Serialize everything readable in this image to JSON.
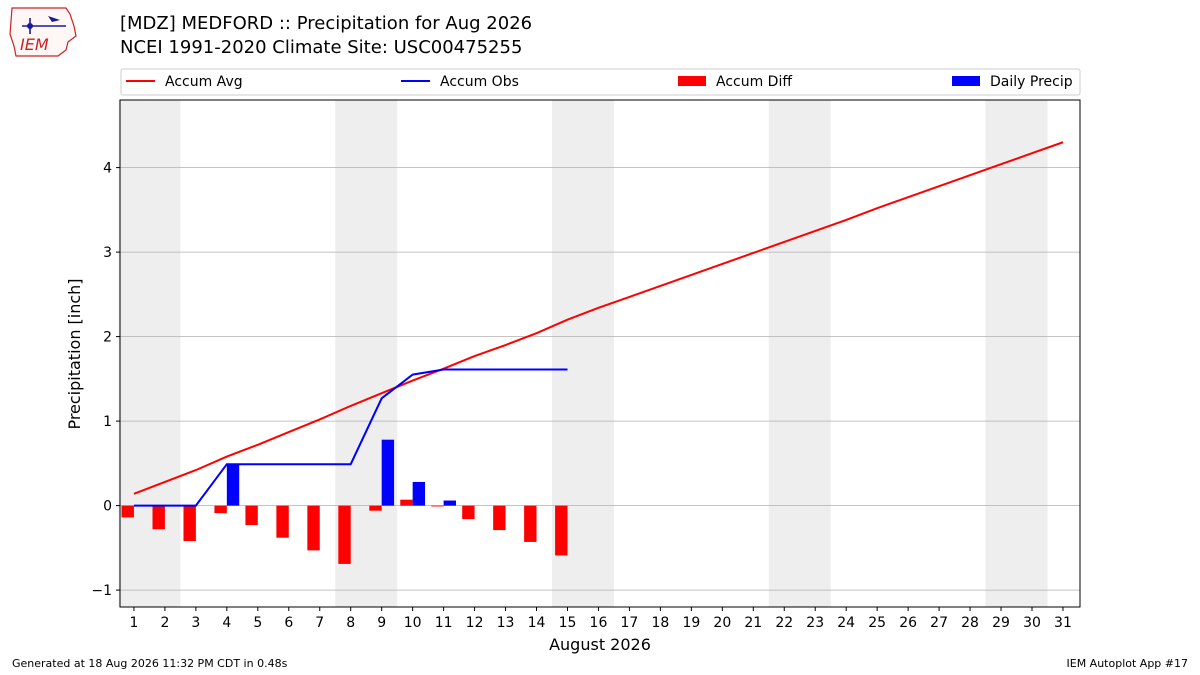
{
  "header": {
    "title_line1": "[MDZ] MEDFORD :: Precipitation for Aug 2026",
    "title_line2": "NCEI 1991-2020 Climate Site: USC00475255",
    "logo_text": "IEM"
  },
  "footer": {
    "generated": "Generated at 18 Aug 2026 11:32 PM CDT in 0.48s",
    "app": "IEM Autoplot App #17"
  },
  "colors": {
    "avg": "#ff0000",
    "obs": "#0000ff",
    "diff": "#ff0000",
    "daily": "#0000ff",
    "weekend_band": "#eeeeee",
    "grid": "#b0b0b0"
  },
  "chart_data": {
    "type": "bar",
    "title": "[MDZ] MEDFORD :: Precipitation for Aug 2026",
    "xlabel": "August 2026",
    "ylabel": "Precipitation [inch]",
    "xlim": [
      0.55,
      31.55
    ],
    "ylim": [
      -1.2,
      4.8
    ],
    "yticks": [
      -1,
      0,
      1,
      2,
      3,
      4
    ],
    "ytick_labels": [
      "−1",
      "0",
      "1",
      "2",
      "3",
      "4"
    ],
    "xticks": [
      1,
      2,
      3,
      4,
      5,
      6,
      7,
      8,
      9,
      10,
      11,
      12,
      13,
      14,
      15,
      16,
      17,
      18,
      19,
      20,
      21,
      22,
      23,
      24,
      25,
      26,
      27,
      28,
      29,
      30,
      31
    ],
    "grid": "horizontal",
    "legend_position": "top",
    "legend": [
      "Accum Avg",
      "Accum Obs",
      "Accum Diff",
      "Daily Precip"
    ],
    "weekend_bands": [
      [
        1,
        2
      ],
      [
        8,
        9
      ],
      [
        15,
        16
      ],
      [
        22,
        23
      ],
      [
        29,
        30
      ]
    ],
    "accum_avg": {
      "name": "Accum Avg",
      "x": [
        1,
        2,
        3,
        4,
        5,
        6,
        7,
        8,
        9,
        10,
        11,
        12,
        13,
        14,
        15,
        16,
        17,
        18,
        19,
        20,
        21,
        22,
        23,
        24,
        25,
        26,
        27,
        28,
        29,
        30,
        31
      ],
      "values": [
        0.14,
        0.28,
        0.42,
        0.58,
        0.72,
        0.87,
        1.02,
        1.18,
        1.33,
        1.48,
        1.62,
        1.77,
        1.9,
        2.04,
        2.2,
        2.34,
        2.47,
        2.6,
        2.73,
        2.86,
        2.99,
        3.12,
        3.25,
        3.38,
        3.52,
        3.65,
        3.78,
        3.91,
        4.04,
        4.17,
        4.3
      ]
    },
    "accum_obs": {
      "name": "Accum Obs",
      "x": [
        1,
        2,
        3,
        4,
        5,
        6,
        7,
        8,
        9,
        10,
        11,
        12,
        13,
        14,
        15
      ],
      "values": [
        0.0,
        0.0,
        0.0,
        0.49,
        0.49,
        0.49,
        0.49,
        0.49,
        1.27,
        1.55,
        1.61,
        1.61,
        1.61,
        1.61,
        1.61
      ]
    },
    "accum_diff": {
      "name": "Accum Diff",
      "x": [
        1,
        2,
        3,
        4,
        5,
        6,
        7,
        8,
        9,
        10,
        11,
        12,
        13,
        14,
        15
      ],
      "values": [
        -0.14,
        -0.28,
        -0.42,
        -0.09,
        -0.23,
        -0.38,
        -0.53,
        -0.69,
        -0.06,
        0.07,
        -0.01,
        -0.16,
        -0.29,
        -0.43,
        -0.59
      ]
    },
    "daily_precip": {
      "name": "Daily Precip",
      "x": [
        1,
        2,
        3,
        4,
        5,
        6,
        7,
        8,
        9,
        10,
        11,
        12,
        13,
        14,
        15
      ],
      "values": [
        0,
        0,
        0,
        0.49,
        0,
        0,
        0,
        0,
        0.78,
        0.28,
        0.06,
        0,
        0,
        0,
        0
      ]
    }
  }
}
